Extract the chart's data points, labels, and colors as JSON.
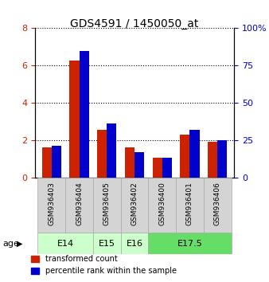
{
  "title": "GDS4591 / 1450050_at",
  "samples": [
    "GSM936403",
    "GSM936404",
    "GSM936405",
    "GSM936402",
    "GSM936400",
    "GSM936401",
    "GSM936406"
  ],
  "transformed_count": [
    1.6,
    6.25,
    2.55,
    1.6,
    1.05,
    2.3,
    1.9
  ],
  "percentile_rank_pct": [
    21.25,
    85.0,
    36.25,
    16.875,
    13.125,
    31.875,
    25.0
  ],
  "bar_color_red": "#cc2200",
  "bar_color_blue": "#0000cc",
  "ylim_left": [
    0,
    8
  ],
  "ylim_right": [
    0,
    100
  ],
  "yticks_left": [
    0,
    2,
    4,
    6,
    8
  ],
  "yticks_right": [
    0,
    25,
    50,
    75,
    100
  ],
  "ytick_labels_right": [
    "0",
    "25",
    "50",
    "75",
    "100%"
  ],
  "age_groups": [
    {
      "label": "E14",
      "samples": [
        0,
        1
      ],
      "color": "#ccffcc"
    },
    {
      "label": "E15",
      "samples": [
        2
      ],
      "color": "#ccffcc"
    },
    {
      "label": "E16",
      "samples": [
        3
      ],
      "color": "#ccffcc"
    },
    {
      "label": "E17.5",
      "samples": [
        4,
        5,
        6
      ],
      "color": "#66dd66"
    }
  ],
  "legend_labels": [
    "transformed count",
    "percentile rank within the sample"
  ],
  "bar_width": 0.35,
  "bar_color_left": "#cc2200",
  "bar_color_right": "#0000cc"
}
